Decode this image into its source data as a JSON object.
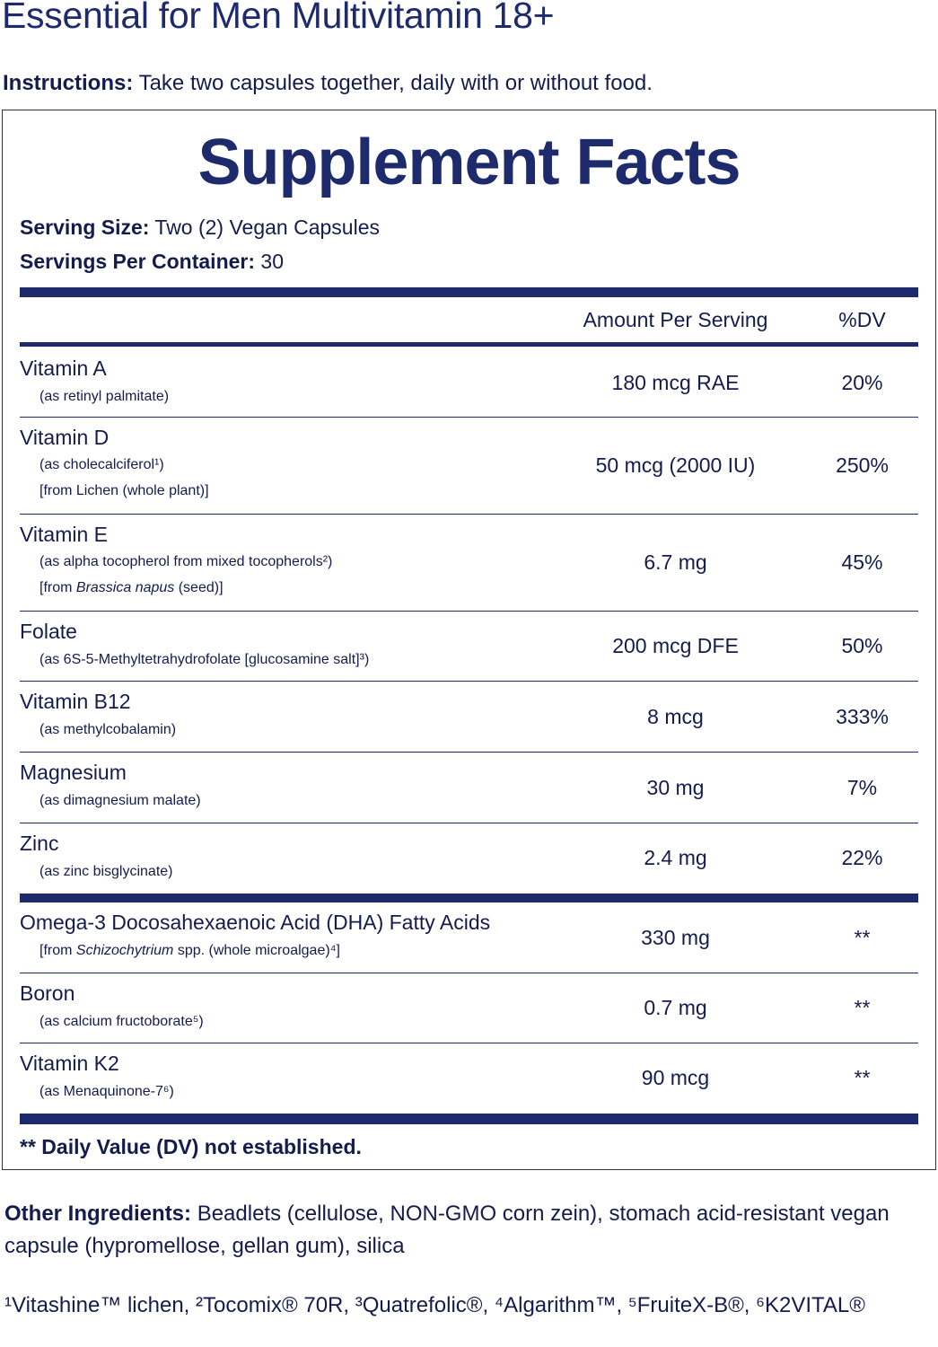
{
  "title": "Essential for Men Multivitamin 18+",
  "instructions": {
    "label": "Instructions:",
    "text": " Take two capsules together, daily with or without food."
  },
  "facts": {
    "heading": "Supplement Facts",
    "serving_size_label": "Serving Size:",
    "serving_size": " Two (2) Vegan Capsules",
    "servings_label": "Servings Per Container:",
    "servings": " 30",
    "col_amount": "Amount Per Serving",
    "col_dv": "%DV",
    "rows": [
      {
        "name": "Vitamin A",
        "sub": [
          [
            {
              "t": "(as retinyl palmitate)"
            }
          ]
        ],
        "amount": "180 mcg RAE",
        "dv": "20%"
      },
      {
        "name": "Vitamin D",
        "sub": [
          [
            {
              "t": "(as cholecalciferol¹)"
            }
          ],
          [
            {
              "t": "[from Lichen (whole plant)]"
            }
          ]
        ],
        "amount": "50 mcg (2000 IU)",
        "dv": "250%"
      },
      {
        "name": "Vitamin E",
        "sub": [
          [
            {
              "t": "(as alpha tocopherol from mixed tocopherols²)"
            }
          ],
          [
            {
              "t": "[from "
            },
            {
              "t": "Brassica napus",
              "i": true
            },
            {
              "t": " (seed)]"
            }
          ]
        ],
        "amount": "6.7 mg",
        "dv": "45%"
      },
      {
        "name": "Folate",
        "sub": [
          [
            {
              "t": "(as 6S-5-Methyltetrahydrofolate [glucosamine salt]³)"
            }
          ]
        ],
        "amount": "200 mcg DFE",
        "dv": "50%"
      },
      {
        "name": "Vitamin B12",
        "sub": [
          [
            {
              "t": "(as methylcobalamin)"
            }
          ]
        ],
        "amount": "8 mcg",
        "dv": "333%"
      },
      {
        "name": "Magnesium",
        "sub": [
          [
            {
              "t": "(as dimagnesium malate)"
            }
          ]
        ],
        "amount": "30 mg",
        "dv": "7%"
      },
      {
        "name": "Zinc",
        "sub": [
          [
            {
              "t": "(as zinc bisglycinate)"
            }
          ]
        ],
        "amount": "2.4 mg",
        "dv": "22%"
      }
    ],
    "rows2": [
      {
        "name": "Omega-3 Docosahexaenoic Acid (DHA) Fatty Acids",
        "sub": [
          [
            {
              "t": "[from "
            },
            {
              "t": "Schizochytrium",
              "i": true
            },
            {
              "t": " spp. (whole microalgae)⁴]"
            }
          ]
        ],
        "amount": "330 mg",
        "dv": "**"
      },
      {
        "name": "Boron",
        "sub": [
          [
            {
              "t": "(as calcium fructoborate⁵)"
            }
          ]
        ],
        "amount": "0.7 mg",
        "dv": "**"
      },
      {
        "name": "Vitamin K2",
        "sub": [
          [
            {
              "t": "(as Menaquinone-7⁶)"
            }
          ]
        ],
        "amount": "90 mcg",
        "dv": "**"
      }
    ],
    "footnote": "** Daily Value (DV) not established."
  },
  "other_ingredients": {
    "label": "Other Ingredients:",
    "text": " Beadlets (cellulose, NON-GMO corn zein), stomach acid-resistant vegan capsule (hypromellose, gellan gum), silica"
  },
  "trademarks": "¹Vitashine™ lichen, ²Tocomix® 70R, ³Quatrefolic®, ⁴Algarithm™, ⁵FruiteX-B®, ⁶K2VITAL®",
  "colors": {
    "navy": "#1d2a6c",
    "text": "#141c4e"
  }
}
